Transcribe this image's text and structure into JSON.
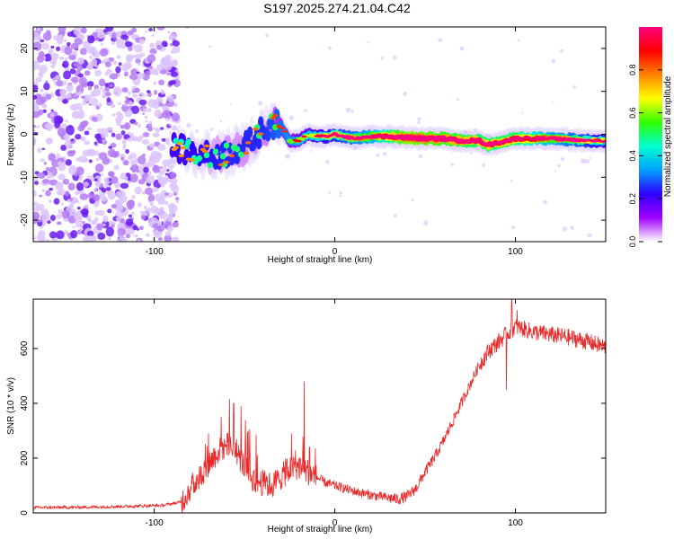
{
  "title": "S197.2025.274.21.04.C42",
  "chart_data": [
    {
      "type": "heatmap",
      "name": "spectrogram",
      "xlabel": "Height of straight line (km)",
      "ylabel": "Frequency (Hz)",
      "xlim": [
        -167,
        150
      ],
      "ylim": [
        -25,
        25
      ],
      "xticks": [
        -100,
        0,
        100
      ],
      "xtick_labels": [
        "-100",
        "0",
        "100"
      ],
      "yticks": [
        -20,
        -10,
        0,
        10,
        20
      ],
      "ytick_labels": [
        "-20",
        "-10",
        "0",
        "10",
        "20"
      ],
      "noise_region_x": [
        -167,
        -90
      ],
      "signal_track": {
        "x": [
          -90,
          -80,
          -70,
          -60,
          -50,
          -40,
          -35,
          -30,
          -25,
          -20,
          -15,
          -10,
          -5,
          0,
          10,
          20,
          30,
          40,
          50,
          60,
          70,
          80,
          85,
          90,
          95,
          100,
          110,
          120,
          130,
          140,
          150
        ],
        "y": [
          -3,
          -4,
          -5,
          -4.5,
          -3,
          1,
          2.5,
          2,
          -1.5,
          -1.5,
          0,
          -0.5,
          -0.5,
          0,
          -1,
          -0.5,
          -0.5,
          -0.8,
          -1,
          -1,
          -1.5,
          -1.5,
          -2.5,
          -2,
          -1.5,
          -1,
          -1,
          -1,
          -1.2,
          -1.5,
          -1.5
        ]
      },
      "signal_amplitude": {
        "x": [
          -90,
          -60,
          -40,
          -30,
          -20,
          0,
          20,
          40,
          60,
          80,
          100,
          120,
          150
        ],
        "value": [
          0.25,
          0.3,
          0.3,
          0.35,
          0.4,
          0.5,
          0.6,
          0.85,
          0.8,
          0.75,
          0.75,
          0.6,
          0.45
        ]
      },
      "colorbar": {
        "label": "Normalized spectral amplitude",
        "range": [
          0,
          1
        ],
        "ticks": [
          0.0,
          0.2,
          0.4,
          0.6,
          0.8
        ],
        "tick_labels": [
          "0.0",
          "0.2",
          "0.4",
          "0.6",
          "0.8"
        ],
        "colors": [
          "#ffffff",
          "#a000ff",
          "#3000ff",
          "#00a0ff",
          "#00ffd0",
          "#30ff00",
          "#ffff00",
          "#ff8000",
          "#ff0000",
          "#ff0080"
        ]
      }
    },
    {
      "type": "line",
      "name": "snr",
      "xlabel": "Height of straight line (km)",
      "ylabel": "SNR (10 * v/v)",
      "xlim": [
        -167,
        150
      ],
      "ylim": [
        0,
        780
      ],
      "xticks": [
        -100,
        0,
        100
      ],
      "xtick_labels": [
        "-100",
        "0",
        "100"
      ],
      "yticks": [
        0,
        200,
        400,
        600
      ],
      "ytick_labels": [
        "0",
        "200",
        "400",
        "600"
      ],
      "color": "#e82a2a",
      "series": [
        {
          "name": "SNR",
          "x": [
            -167,
            -150,
            -130,
            -110,
            -95,
            -85,
            -80,
            -75,
            -70,
            -65,
            -60,
            -55,
            -50,
            -45,
            -40,
            -35,
            -30,
            -25,
            -20,
            -15,
            -10,
            -5,
            0,
            5,
            10,
            20,
            30,
            35,
            40,
            45,
            50,
            55,
            60,
            65,
            70,
            75,
            80,
            85,
            90,
            95,
            100,
            105,
            110,
            120,
            130,
            140,
            150
          ],
          "y": [
            20,
            20,
            22,
            25,
            28,
            40,
            90,
            130,
            180,
            220,
            250,
            230,
            170,
            120,
            110,
            100,
            130,
            160,
            170,
            150,
            130,
            110,
            100,
            90,
            80,
            65,
            55,
            50,
            60,
            90,
            150,
            200,
            260,
            330,
            400,
            470,
            540,
            590,
            620,
            650,
            680,
            670,
            660,
            650,
            640,
            625,
            605
          ]
        }
      ],
      "spikes": [
        {
          "x": -70,
          "y": 290
        },
        {
          "x": -63,
          "y": 350
        },
        {
          "x": -56,
          "y": 400
        },
        {
          "x": -52,
          "y": 390
        },
        {
          "x": -48,
          "y": 300
        },
        {
          "x": -24,
          "y": 290
        },
        {
          "x": -17,
          "y": 480
        },
        {
          "x": -14,
          "y": 240
        },
        {
          "x": 98,
          "y": 780
        },
        {
          "x": 101,
          "y": 740
        },
        {
          "x": 95,
          "y": 450
        }
      ]
    }
  ]
}
